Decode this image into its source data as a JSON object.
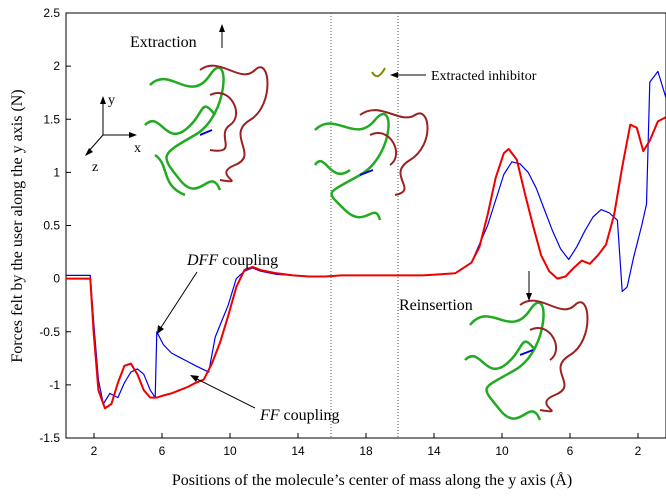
{
  "chart_data": {
    "type": "line",
    "title": "",
    "xlabel": "Positions of the molecule’s center of mass along the y axis (Å)",
    "ylabel": "Forces felt by the user along the y axis (N)",
    "ylim": [
      -1.5,
      2.5
    ],
    "y_ticks": [
      "-1.5",
      "-1",
      "-0.5",
      "0",
      "0.5",
      "1",
      "1.5",
      "2",
      "2.5"
    ],
    "x_tick_labels": [
      "2",
      "6",
      "10",
      "14",
      "18",
      "14",
      "10",
      "6",
      "2"
    ],
    "phases": [
      "extraction",
      "reinsertion"
    ],
    "series": [
      {
        "name": "DFF coupling",
        "color": "#0000ee",
        "points": [
          [
            0,
            0.03
          ],
          [
            1.5,
            0.03
          ],
          [
            1.7,
            -0.4
          ],
          [
            2,
            -0.95
          ],
          [
            2.3,
            -1.18
          ],
          [
            2.7,
            -1.08
          ],
          [
            3.2,
            -1.12
          ],
          [
            3.6,
            -0.98
          ],
          [
            4,
            -0.88
          ],
          [
            4.4,
            -0.85
          ],
          [
            4.8,
            -0.9
          ],
          [
            5.2,
            -1.05
          ],
          [
            5.5,
            -1.12
          ],
          [
            5.6,
            -0.5
          ],
          [
            6,
            -0.62
          ],
          [
            6.5,
            -0.7
          ],
          [
            7,
            -0.74
          ],
          [
            7.5,
            -0.78
          ],
          [
            8,
            -0.82
          ],
          [
            8.4,
            -0.85
          ],
          [
            8.8,
            -0.88
          ],
          [
            9.2,
            -0.55
          ],
          [
            9.6,
            -0.4
          ],
          [
            10,
            -0.25
          ],
          [
            10.5,
            0.0
          ],
          [
            11,
            0.07
          ],
          [
            11.5,
            0.1
          ],
          [
            12,
            0.07
          ],
          [
            13,
            0.04
          ],
          [
            14,
            0.03
          ],
          [
            15,
            0.02
          ],
          [
            16,
            0.02
          ],
          [
            17,
            0.03
          ],
          [
            18,
            0.03
          ],
          [
            19,
            0.03
          ],
          [
            20,
            0.03
          ],
          [
            21,
            0.03
          ],
          [
            22,
            0.03
          ],
          [
            23,
            0.04
          ],
          [
            24,
            0.05
          ],
          [
            25,
            0.15
          ],
          [
            26,
            0.5
          ],
          [
            27,
            0.98
          ],
          [
            27.5,
            1.1
          ],
          [
            28,
            1.08
          ],
          [
            28.5,
            1.0
          ],
          [
            29,
            0.85
          ],
          [
            29.5,
            0.65
          ],
          [
            30,
            0.45
          ],
          [
            30.5,
            0.28
          ],
          [
            31,
            0.18
          ],
          [
            31.5,
            0.3
          ],
          [
            32,
            0.45
          ],
          [
            32.5,
            0.58
          ],
          [
            33,
            0.65
          ],
          [
            33.5,
            0.62
          ],
          [
            34,
            0.55
          ],
          [
            34.3,
            -0.12
          ],
          [
            34.6,
            -0.08
          ],
          [
            35,
            0.2
          ],
          [
            35.5,
            0.5
          ],
          [
            35.8,
            0.7
          ],
          [
            36,
            1.85
          ],
          [
            36.5,
            1.95
          ],
          [
            37,
            1.7
          ]
        ]
      },
      {
        "name": "FF coupling",
        "color": "#ee0000",
        "points": [
          [
            0,
            0.0
          ],
          [
            1.5,
            0.0
          ],
          [
            1.7,
            -0.5
          ],
          [
            2,
            -1.05
          ],
          [
            2.4,
            -1.22
          ],
          [
            2.8,
            -1.18
          ],
          [
            3.2,
            -0.98
          ],
          [
            3.6,
            -0.82
          ],
          [
            4,
            -0.8
          ],
          [
            4.4,
            -0.9
          ],
          [
            4.8,
            -1.05
          ],
          [
            5.2,
            -1.12
          ],
          [
            5.6,
            -1.12
          ],
          [
            6,
            -1.1
          ],
          [
            6.5,
            -1.08
          ],
          [
            7,
            -1.05
          ],
          [
            7.5,
            -1.02
          ],
          [
            8,
            -0.98
          ],
          [
            8.5,
            -0.95
          ],
          [
            9,
            -0.8
          ],
          [
            9.5,
            -0.6
          ],
          [
            10,
            -0.35
          ],
          [
            10.5,
            -0.08
          ],
          [
            11,
            0.08
          ],
          [
            11.5,
            0.11
          ],
          [
            12,
            0.08
          ],
          [
            13,
            0.05
          ],
          [
            14,
            0.03
          ],
          [
            15,
            0.02
          ],
          [
            16,
            0.02
          ],
          [
            17,
            0.03
          ],
          [
            18,
            0.03
          ],
          [
            19,
            0.03
          ],
          [
            20,
            0.03
          ],
          [
            21,
            0.03
          ],
          [
            22,
            0.03
          ],
          [
            23,
            0.04
          ],
          [
            24,
            0.05
          ],
          [
            25,
            0.15
          ],
          [
            25.5,
            0.3
          ],
          [
            26,
            0.6
          ],
          [
            26.5,
            0.95
          ],
          [
            27,
            1.18
          ],
          [
            27.3,
            1.22
          ],
          [
            27.8,
            1.12
          ],
          [
            28.3,
            0.8
          ],
          [
            28.8,
            0.5
          ],
          [
            29.3,
            0.22
          ],
          [
            29.8,
            0.07
          ],
          [
            30.3,
            0.0
          ],
          [
            30.8,
            0.02
          ],
          [
            31.3,
            0.1
          ],
          [
            31.8,
            0.17
          ],
          [
            32.3,
            0.14
          ],
          [
            32.8,
            0.22
          ],
          [
            33.3,
            0.32
          ],
          [
            33.8,
            0.6
          ],
          [
            34.3,
            1.05
          ],
          [
            34.8,
            1.45
          ],
          [
            35.2,
            1.42
          ],
          [
            35.6,
            1.2
          ],
          [
            36,
            1.3
          ],
          [
            36.5,
            1.48
          ],
          [
            37,
            1.52
          ]
        ]
      }
    ]
  },
  "annotations": {
    "extraction": "Extraction",
    "extracted_inhibitor": "Extracted inhibitor",
    "reinsertion": "Reinsertion",
    "dff_italic": "DFF",
    "ff_italic": "FF",
    "coupling": " coupling",
    "axis_y": "y",
    "axis_x": "x",
    "axis_z": "z"
  },
  "colors": {
    "protein_a": "#22aa22",
    "protein_b": "#992222",
    "inhibitor": "#888800"
  },
  "icons": [
    "protein-structure-icon",
    "coordinate-axes-icon"
  ]
}
